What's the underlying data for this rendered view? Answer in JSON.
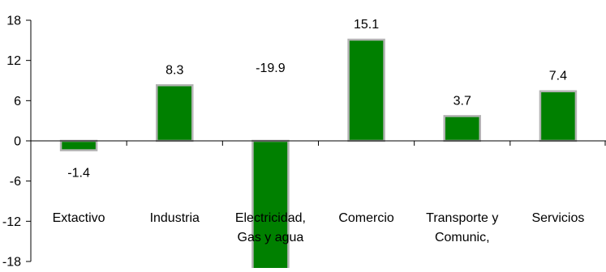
{
  "chart_data": {
    "type": "bar",
    "title": "",
    "xlabel": "",
    "ylabel": "",
    "categories": [
      [
        "Extactivo"
      ],
      [
        "Industria"
      ],
      [
        "Electricidad,",
        "Gas y agua"
      ],
      [
        "Comercio"
      ],
      [
        "Transporte y",
        "Comunic,"
      ],
      [
        "Servicios"
      ]
    ],
    "values": [
      -1.4,
      8.3,
      -19.9,
      15.1,
      3.7,
      7.4
    ],
    "value_labels": [
      "-1.4",
      "8.3",
      "-19.9",
      "15.1",
      "3.7",
      "7.4"
    ],
    "ylim": [
      -18,
      18
    ],
    "yticks": [
      18,
      12,
      6,
      0,
      -6,
      -12,
      -18
    ],
    "ytick_labels": [
      "18",
      "12",
      "6",
      "0",
      "-6",
      "-12",
      "-18"
    ],
    "grid": false,
    "legend": "none",
    "colors": {
      "bar_fill": "#008000",
      "bar_border": "#b3b3b3",
      "axis": "#000000"
    }
  }
}
